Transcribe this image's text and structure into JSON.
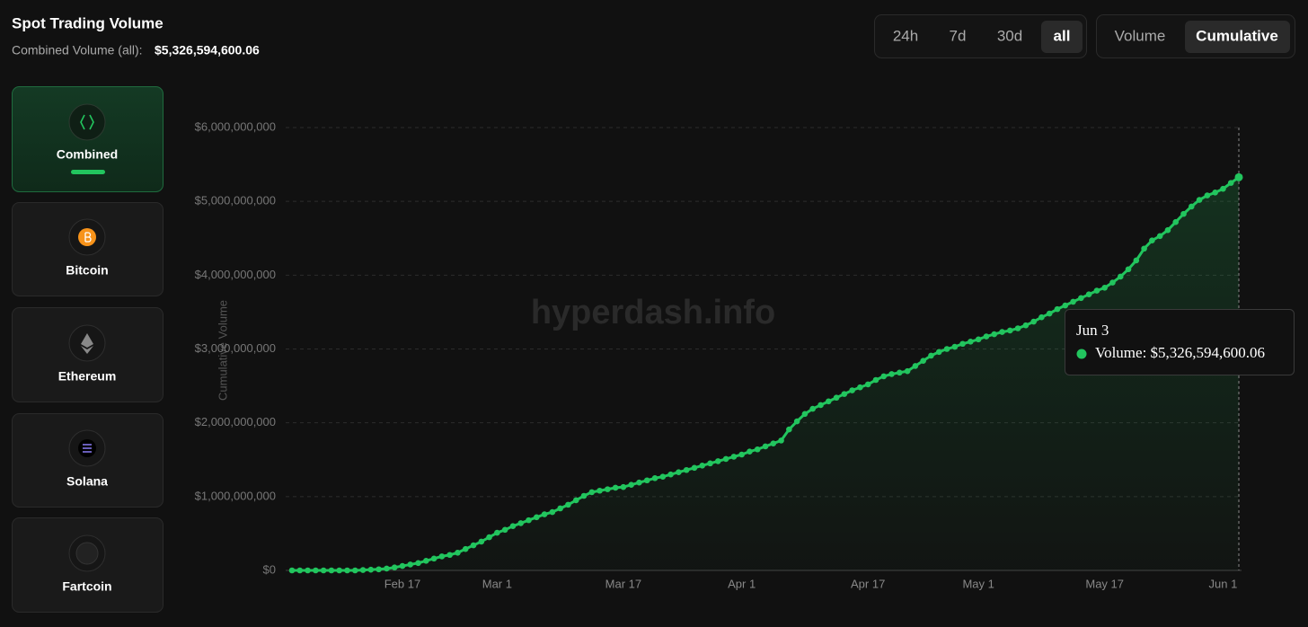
{
  "header": {
    "title": "Spot Trading Volume",
    "subtitle_label": "Combined Volume (all):",
    "subtitle_value": "$5,326,594,600.06"
  },
  "range_buttons": [
    "24h",
    "7d",
    "30d",
    "all"
  ],
  "mode_buttons": [
    "Volume",
    "Cumulative"
  ],
  "assets": [
    "Combined",
    "Bitcoin",
    "Ethereum",
    "Solana",
    "Fartcoin"
  ],
  "watermark": "hyperdash.info",
  "tooltip": {
    "date": "Jun 3",
    "text": "Volume: $5,326,594,600.06"
  },
  "chart_data": {
    "type": "line",
    "y_label": "Cumulative Volume",
    "color": "#22c55e",
    "area": true,
    "markers": true,
    "grid": true,
    "categories": [
      null,
      null,
      null,
      null,
      null,
      null,
      null,
      null,
      null,
      null,
      null,
      null,
      null,
      null,
      "Feb 17",
      null,
      null,
      null,
      null,
      null,
      null,
      null,
      null,
      null,
      null,
      null,
      "Mar 1",
      null,
      null,
      null,
      null,
      null,
      null,
      null,
      null,
      null,
      null,
      null,
      null,
      null,
      null,
      null,
      "Mar 17",
      null,
      null,
      null,
      null,
      null,
      null,
      null,
      null,
      null,
      null,
      null,
      null,
      null,
      null,
      "Apr 1",
      null,
      null,
      null,
      null,
      null,
      null,
      null,
      null,
      null,
      null,
      null,
      null,
      null,
      null,
      null,
      "Apr 17",
      null,
      null,
      null,
      null,
      null,
      null,
      null,
      null,
      null,
      null,
      null,
      null,
      null,
      "May 1",
      null,
      null,
      null,
      null,
      null,
      null,
      null,
      null,
      null,
      null,
      null,
      null,
      null,
      null,
      null,
      "May 17",
      null,
      null,
      null,
      null,
      null,
      null,
      null,
      null,
      null,
      null,
      null,
      null,
      null,
      null,
      "Jun 1",
      null,
      null
    ],
    "values": [
      0,
      0,
      0,
      0,
      0,
      0,
      0,
      0,
      0,
      5000000,
      10000000,
      15000000,
      25000000,
      40000000,
      60000000,
      80000000,
      100000000,
      130000000,
      160000000,
      190000000,
      210000000,
      240000000,
      290000000,
      340000000,
      390000000,
      450000000,
      510000000,
      550000000,
      600000000,
      640000000,
      680000000,
      720000000,
      760000000,
      790000000,
      840000000,
      890000000,
      950000000,
      1010000000,
      1060000000,
      1080000000,
      1100000000,
      1120000000,
      1130000000,
      1160000000,
      1190000000,
      1220000000,
      1250000000,
      1270000000,
      1300000000,
      1330000000,
      1360000000,
      1390000000,
      1420000000,
      1450000000,
      1480000000,
      1510000000,
      1540000000,
      1570000000,
      1610000000,
      1640000000,
      1680000000,
      1720000000,
      1760000000,
      1910000000,
      2020000000,
      2120000000,
      2190000000,
      2240000000,
      2290000000,
      2340000000,
      2390000000,
      2440000000,
      2480000000,
      2520000000,
      2580000000,
      2630000000,
      2660000000,
      2680000000,
      2700000000,
      2770000000,
      2840000000,
      2910000000,
      2960000000,
      3000000000,
      3030000000,
      3070000000,
      3100000000,
      3130000000,
      3170000000,
      3200000000,
      3230000000,
      3250000000,
      3280000000,
      3320000000,
      3370000000,
      3430000000,
      3480000000,
      3540000000,
      3590000000,
      3640000000,
      3690000000,
      3740000000,
      3790000000,
      3830000000,
      3900000000,
      3980000000,
      4080000000,
      4200000000,
      4360000000,
      4470000000,
      4530000000,
      4610000000,
      4720000000,
      4830000000,
      4930000000,
      5020000000,
      5080000000,
      5120000000,
      5170000000,
      5250000000,
      5326594600.06
    ],
    "ylim": [
      0,
      6000000000
    ],
    "yticks": [
      {
        "value": 0,
        "label": "$0"
      },
      {
        "value": 1000000000,
        "label": "$1,000,000,000"
      },
      {
        "value": 2000000000,
        "label": "$2,000,000,000"
      },
      {
        "value": 3000000000,
        "label": "$3,000,000,000"
      },
      {
        "value": 4000000000,
        "label": "$4,000,000,000"
      },
      {
        "value": 5000000000,
        "label": "$5,000,000,000"
      },
      {
        "value": 6000000000,
        "label": "$6,000,000,000"
      }
    ]
  }
}
